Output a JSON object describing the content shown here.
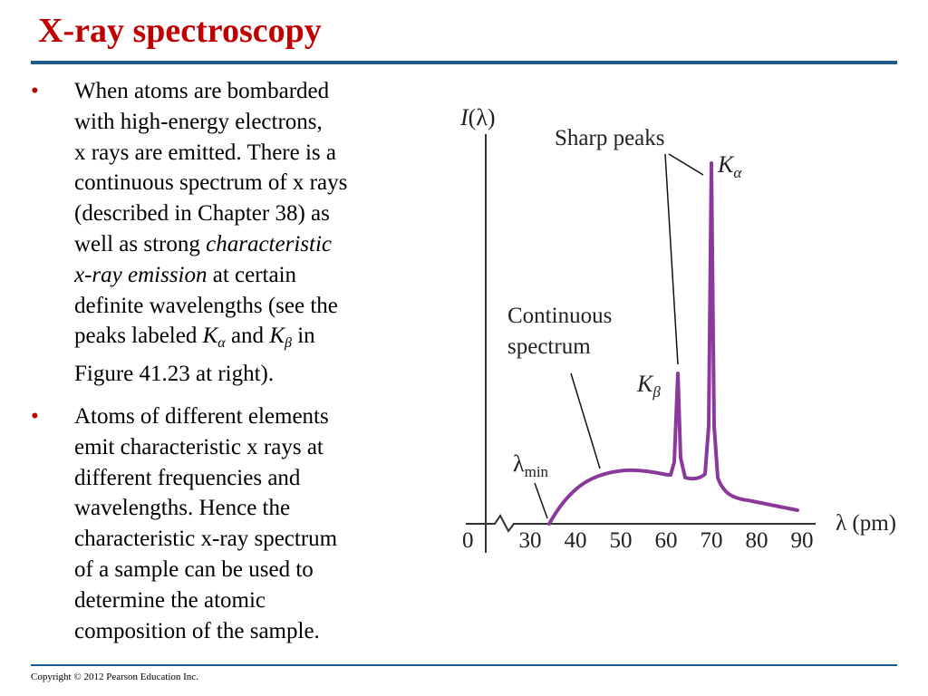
{
  "slide": {
    "title": "X-ray spectroscopy",
    "footer": "Copyright © 2012 Pearson Education Inc."
  },
  "bullets": {
    "b1": {
      "line1": "When atoms are bombarded",
      "line2": "with high-energy electrons,",
      "line3": "x rays are emitted. There is a",
      "line4": "continuous spectrum of x rays",
      "line5": "(described in Chapter 38) as",
      "line6_pre": "well as strong ",
      "line6_em": "characteristic",
      "line7_em": "x-ray emission",
      "line7_post": " at certain",
      "line8": "definite wavelengths (see the",
      "line9_pre": "peaks labeled ",
      "k_letter": "K",
      "alpha": "α",
      "and": " and ",
      "beta": "β",
      "line9_post": " in",
      "line10": "Figure 41.23 at right)."
    },
    "b2": {
      "line1": "Atoms of different elements",
      "line2": "emit characteristic x rays at",
      "line3": "different frequencies and",
      "line4": "wavelengths. Hence the",
      "line5": "characteristic x-ray spectrum",
      "line6": "of a sample can be used to",
      "line7": "determine the atomic",
      "line8": "composition of the sample."
    }
  },
  "figure": {
    "y_axis_label_var": "I",
    "y_axis_label_arg": "(λ)",
    "x_axis_label": "λ (pm)",
    "origin_label": "0",
    "annotation_sharp_peaks": "Sharp peaks",
    "annotation_continuous_line1": "Continuous",
    "annotation_continuous_line2": "spectrum",
    "k_letter": "K",
    "k_alpha_sub": "α",
    "k_beta_sub": "β",
    "lambda_symbol": "λ",
    "lambda_min_sub": "min",
    "curve_color": "#8b3a9c",
    "x_ticks": [
      {
        "label": "30",
        "value": 30
      },
      {
        "label": "40",
        "value": 40
      },
      {
        "label": "50",
        "value": 50
      },
      {
        "label": "60",
        "value": 60
      },
      {
        "label": "70",
        "value": 70
      },
      {
        "label": "80",
        "value": 80
      },
      {
        "label": "90",
        "value": 90
      }
    ]
  }
}
